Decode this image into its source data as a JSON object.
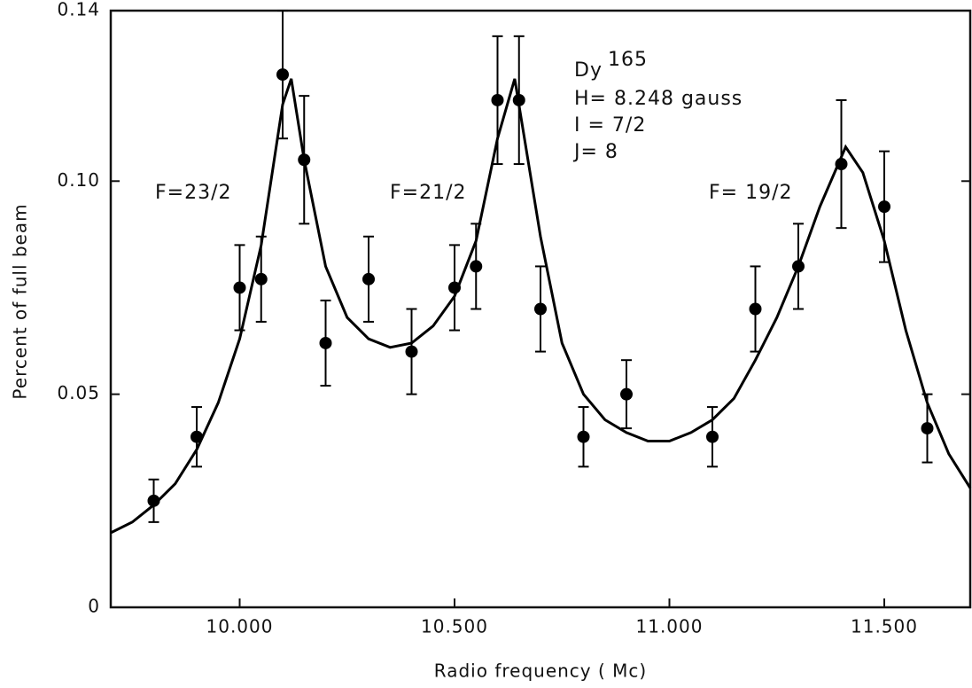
{
  "chart_data": {
    "type": "scatter",
    "xlabel": "Radio frequency  ( Mc)",
    "ylabel": "Percent  of  full  beam",
    "xlim": [
      9.7,
      11.7
    ],
    "ylim": [
      0,
      0.14
    ],
    "xticks": [
      {
        "value": 10.0,
        "label": "10.000"
      },
      {
        "value": 10.5,
        "label": "10.500"
      },
      {
        "value": 11.0,
        "label": "11.000"
      },
      {
        "value": 11.5,
        "label": "11.500"
      }
    ],
    "yticks": [
      0,
      0.05,
      {
        "value": 0.1,
        "label": "0.10"
      },
      0.14
    ],
    "series": [
      {
        "color": "#000000",
        "x": [
          9.8,
          9.9,
          10.0,
          10.05,
          10.1,
          10.15,
          10.2,
          10.3,
          10.4,
          10.5,
          10.55,
          10.6,
          10.65,
          10.7,
          10.8,
          10.9,
          11.1,
          11.2,
          11.3,
          11.4,
          11.5,
          11.6
        ],
        "values": [
          0.025,
          0.04,
          0.075,
          0.077,
          0.125,
          0.105,
          0.062,
          0.077,
          0.06,
          0.075,
          0.08,
          0.119,
          0.119,
          0.07,
          0.04,
          0.05,
          0.04,
          0.07,
          0.08,
          0.104,
          0.094,
          0.042
        ],
        "errors": [
          0.005,
          0.007,
          0.01,
          0.01,
          0.015,
          0.015,
          0.01,
          0.01,
          0.01,
          0.01,
          0.01,
          0.015,
          0.015,
          0.01,
          0.007,
          0.008,
          0.007,
          0.01,
          0.01,
          0.015,
          0.013,
          0.008
        ]
      }
    ],
    "fit": {
      "color": "#000000",
      "x": [
        9.7,
        9.75,
        9.8,
        9.85,
        9.9,
        9.95,
        10.0,
        10.05,
        10.1,
        10.12,
        10.15,
        10.2,
        10.25,
        10.3,
        10.35,
        10.4,
        10.45,
        10.5,
        10.55,
        10.6,
        10.64,
        10.7,
        10.75,
        10.8,
        10.85,
        10.9,
        10.95,
        11.0,
        11.05,
        11.1,
        11.15,
        11.2,
        11.25,
        11.3,
        11.35,
        11.41,
        11.45,
        11.5,
        11.55,
        11.6,
        11.65,
        11.7
      ],
      "values": [
        0.0175,
        0.02,
        0.024,
        0.029,
        0.037,
        0.048,
        0.063,
        0.085,
        0.118,
        0.124,
        0.105,
        0.08,
        0.068,
        0.063,
        0.061,
        0.062,
        0.066,
        0.073,
        0.086,
        0.11,
        0.124,
        0.087,
        0.062,
        0.05,
        0.044,
        0.041,
        0.039,
        0.039,
        0.041,
        0.044,
        0.049,
        0.058,
        0.068,
        0.08,
        0.094,
        0.108,
        0.102,
        0.086,
        0.065,
        0.048,
        0.036,
        0.028
      ]
    },
    "annotations": [
      "F=23/2",
      "F=21/2",
      "F= 19/2",
      "Dy",
      "165",
      "H= 8.248  gauss",
      "I = 7/2",
      "J=  8"
    ]
  }
}
